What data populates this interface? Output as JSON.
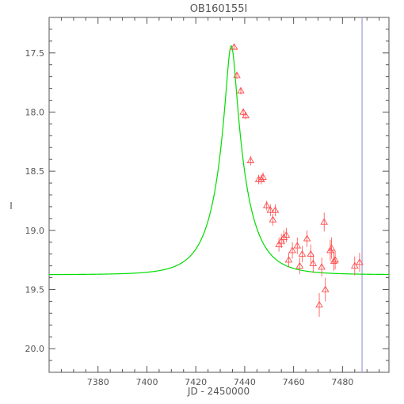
{
  "chart_data": {
    "type": "scatter",
    "title": "OB160155I",
    "xlabel": "JD - 2450000",
    "ylabel": "I",
    "xlim": [
      7360,
      7499
    ],
    "ylim": [
      20.2,
      17.2
    ],
    "y_inverted": true,
    "grid": false,
    "x_ticks": [
      7380,
      7400,
      7420,
      7440,
      7460,
      7480
    ],
    "x_tick_labels": [
      "7380",
      "7400",
      "7420",
      "7440",
      "7460",
      "7480"
    ],
    "y_ticks": [
      17.5,
      18.0,
      18.5,
      19.0,
      19.5,
      20.0
    ],
    "y_tick_labels": [
      "17.5",
      "18.0",
      "18.5",
      "19.0",
      "19.5",
      "20.0"
    ],
    "vertical_line": {
      "x": 7488,
      "color": "#9b9bdd"
    },
    "model_curve": {
      "color": "#00dd00",
      "t0": 7434.5,
      "u0": 0.17,
      "tE": 12,
      "baseline": 19.375
    },
    "observations": {
      "marker": "triangle",
      "color": "#ff4a4a",
      "points": [
        {
          "x": 7435.7,
          "y": 17.45,
          "err": 0.02
        },
        {
          "x": 7436.8,
          "y": 17.69,
          "err": 0.03
        },
        {
          "x": 7438.4,
          "y": 17.82,
          "err": 0.03
        },
        {
          "x": 7439.4,
          "y": 18.0,
          "err": 0.03
        },
        {
          "x": 7440.4,
          "y": 18.03,
          "err": 0.03
        },
        {
          "x": 7442.4,
          "y": 18.41,
          "err": 0.04
        },
        {
          "x": 7445.7,
          "y": 18.57,
          "err": 0.04
        },
        {
          "x": 7446.8,
          "y": 18.57,
          "err": 0.04
        },
        {
          "x": 7447.5,
          "y": 18.55,
          "err": 0.04
        },
        {
          "x": 7449.0,
          "y": 18.79,
          "err": 0.04
        },
        {
          "x": 7450.5,
          "y": 18.83,
          "err": 0.05
        },
        {
          "x": 7451.5,
          "y": 18.91,
          "err": 0.05
        },
        {
          "x": 7452.5,
          "y": 18.83,
          "err": 0.05
        },
        {
          "x": 7454.0,
          "y": 19.12,
          "err": 0.06
        },
        {
          "x": 7455.0,
          "y": 19.09,
          "err": 0.06
        },
        {
          "x": 7456.0,
          "y": 19.06,
          "err": 0.06
        },
        {
          "x": 7457.0,
          "y": 19.04,
          "err": 0.06
        },
        {
          "x": 7458.0,
          "y": 19.25,
          "err": 0.06
        },
        {
          "x": 7459.5,
          "y": 19.17,
          "err": 0.07
        },
        {
          "x": 7461.5,
          "y": 19.13,
          "err": 0.07
        },
        {
          "x": 7462.5,
          "y": 19.3,
          "err": 0.07
        },
        {
          "x": 7463.5,
          "y": 19.2,
          "err": 0.07
        },
        {
          "x": 7465.5,
          "y": 19.07,
          "err": 0.07
        },
        {
          "x": 7467.0,
          "y": 19.2,
          "err": 0.08
        },
        {
          "x": 7468.0,
          "y": 19.28,
          "err": 0.08
        },
        {
          "x": 7470.5,
          "y": 19.63,
          "err": 0.1
        },
        {
          "x": 7471.5,
          "y": 19.31,
          "err": 0.08
        },
        {
          "x": 7472.5,
          "y": 18.93,
          "err": 0.08
        },
        {
          "x": 7473.0,
          "y": 19.5,
          "err": 0.1
        },
        {
          "x": 7475.0,
          "y": 19.17,
          "err": 0.09
        },
        {
          "x": 7475.5,
          "y": 19.15,
          "err": 0.09
        },
        {
          "x": 7476.5,
          "y": 19.26,
          "err": 0.08
        },
        {
          "x": 7477.0,
          "y": 19.25,
          "err": 0.08
        },
        {
          "x": 7485.0,
          "y": 19.3,
          "err": 0.08
        },
        {
          "x": 7487.0,
          "y": 19.27,
          "err": 0.08
        }
      ]
    }
  }
}
